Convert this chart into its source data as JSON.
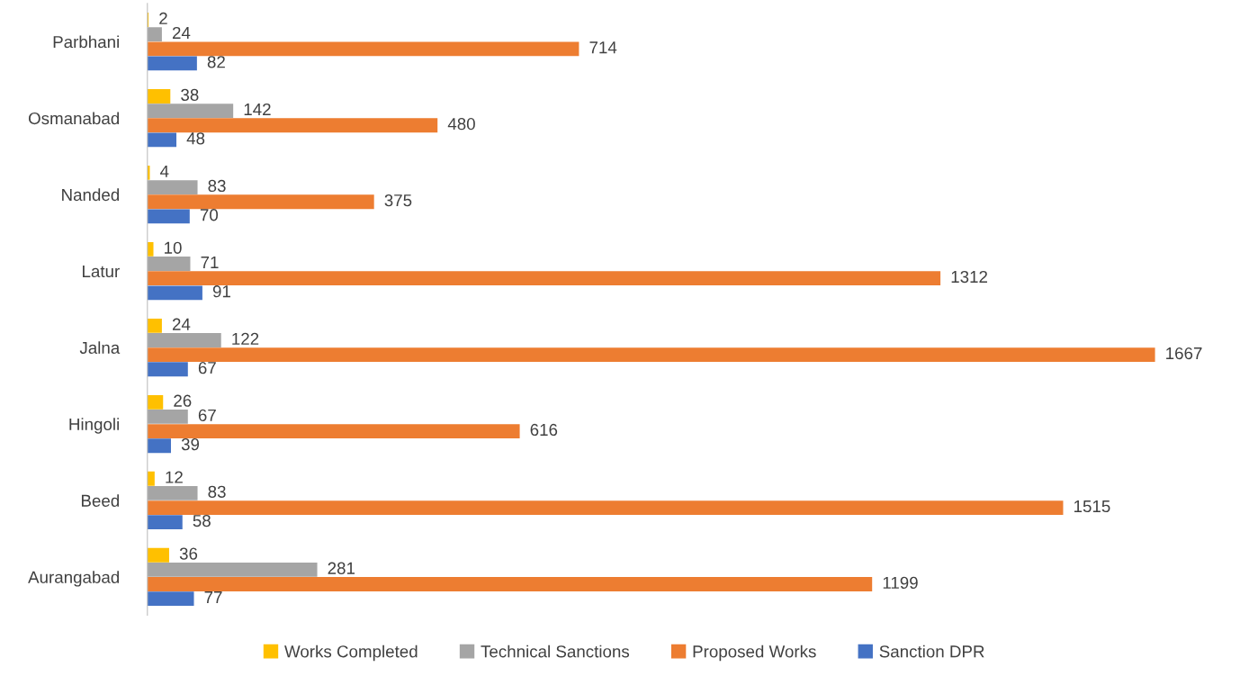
{
  "chart_data": {
    "type": "bar",
    "orientation": "horizontal",
    "categories": [
      "Parbhani",
      "Osmanabad",
      "Nanded",
      "Latur",
      "Jalna",
      "Hingoli",
      "Beed",
      "Aurangabad"
    ],
    "series": [
      {
        "name": "Works Completed",
        "color": "#ffc000",
        "values": [
          2,
          38,
          4,
          10,
          24,
          26,
          12,
          36
        ]
      },
      {
        "name": "Technical Sanctions",
        "color": "#a5a5a5",
        "values": [
          24,
          142,
          83,
          71,
          122,
          67,
          83,
          281
        ]
      },
      {
        "name": "Proposed Works",
        "color": "#ed7d31",
        "values": [
          714,
          480,
          375,
          1312,
          1667,
          616,
          1515,
          1199
        ]
      },
      {
        "name": "Sanction DPR",
        "color": "#4472c4",
        "values": [
          82,
          48,
          70,
          91,
          67,
          39,
          58,
          77
        ]
      }
    ],
    "data_labels": true,
    "legend": "bottom",
    "tick_labels": "y",
    "grid": false
  }
}
